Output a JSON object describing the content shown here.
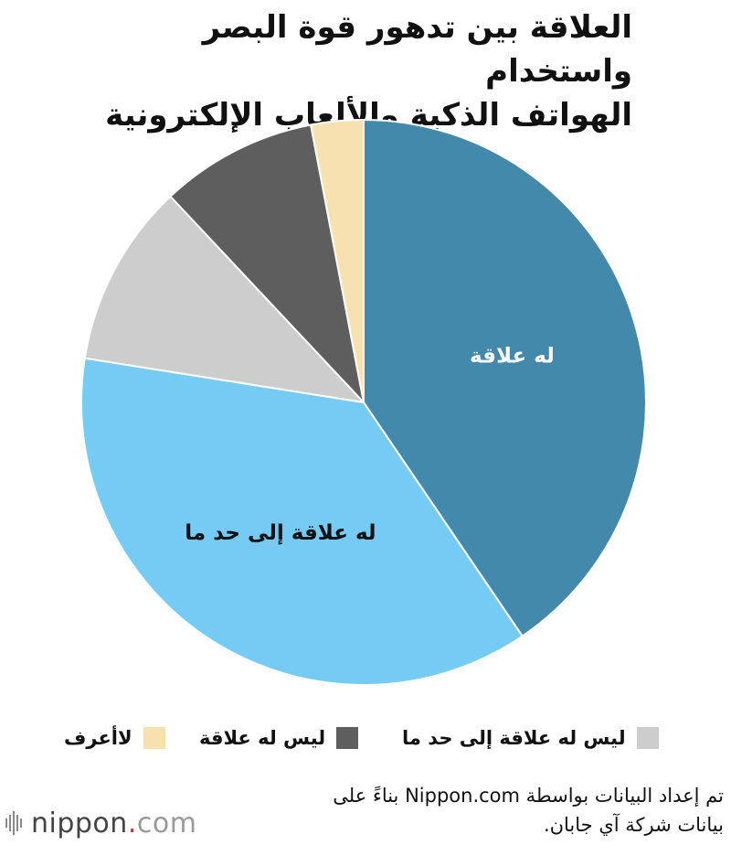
{
  "title_lines": [
    "العلاقة بين تدهور قوة البصر واستخدام",
    "الهواتف الذكية والألعاب الإلكترونية"
  ],
  "chart_data": {
    "type": "pie",
    "title": "العلاقة بين تدهور قوة البصر واستخدام الهواتف الذكية والألعاب الإلكترونية",
    "slices": [
      {
        "label": "له علاقة",
        "value": 40.5,
        "color": "#4389ac",
        "label_color": "#ffffff",
        "show_label": true
      },
      {
        "label": "له علاقة إلى حد ما",
        "value": 37.0,
        "color": "#76cbf5",
        "label_color": "#111111",
        "show_label": true
      },
      {
        "label": "ليس له علاقة إلى حد ما",
        "value": 10.5,
        "color": "#cdcdcd",
        "label_color": "#111111",
        "show_label": false
      },
      {
        "label": "ليس له علاقة",
        "value": 9.0,
        "color": "#5e5e5e",
        "label_color": "#ffffff",
        "show_label": false
      },
      {
        "label": "لاأعرف",
        "value": 3.0,
        "color": "#f8e1b0",
        "label_color": "#111111",
        "show_label": false
      }
    ],
    "start": "top",
    "direction": "clockwise"
  },
  "legend": {
    "placement": "bottom",
    "items": [
      {
        "label": "ليس له علاقة إلى حد ما",
        "color": "#cdcdcd"
      },
      {
        "label": "ليس له علاقة",
        "color": "#5e5e5e"
      },
      {
        "label": "لاأعرف",
        "color": "#f8e1b0"
      }
    ]
  },
  "source_lines": [
    "تم إعداد البيانات بواسطة Nippon.com بناءً على",
    "بيانات شركة آي جابان."
  ],
  "logo": {
    "word": "nippon",
    "dot": ".",
    "suffix": "com",
    "icon": "nippon-bars-logo"
  }
}
